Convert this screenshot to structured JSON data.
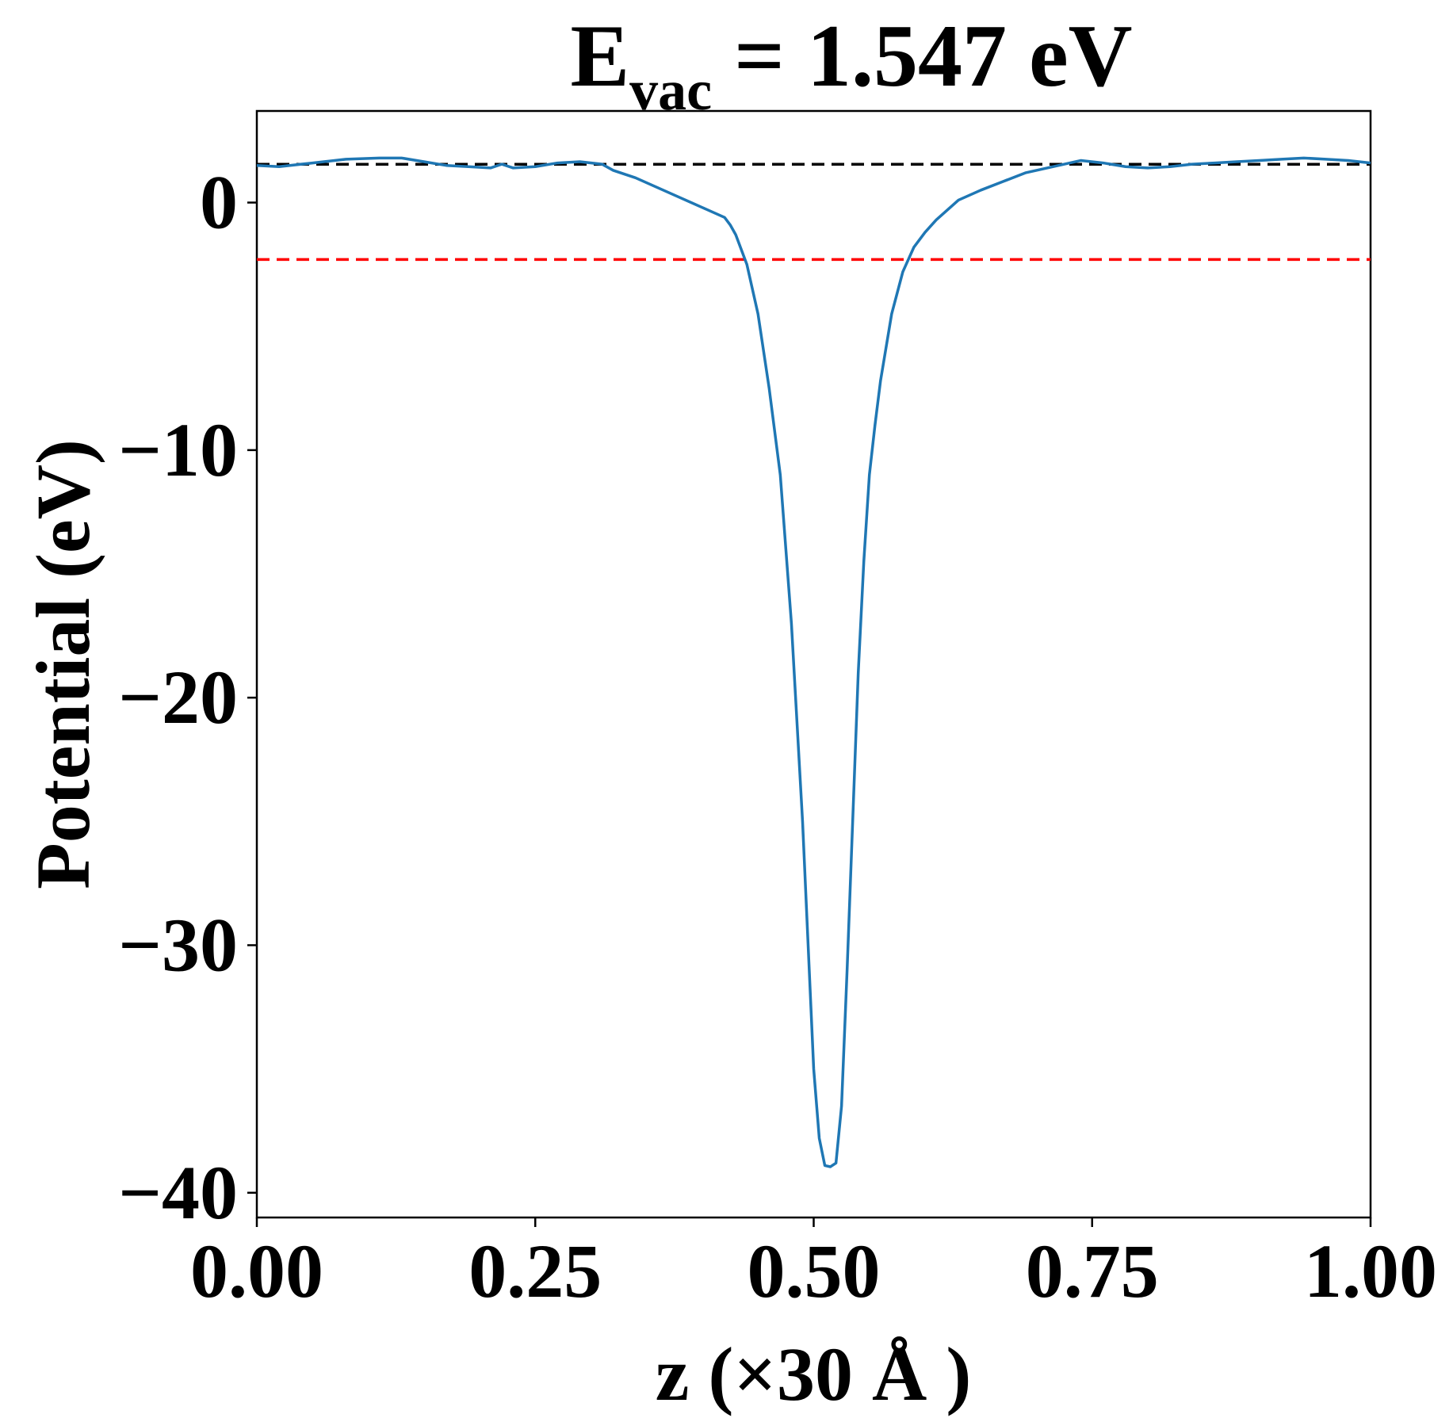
{
  "chart_data": {
    "type": "line",
    "title": {
      "base": "E",
      "subscript": "vac",
      "rest": " = 1.547 eV"
    },
    "xlabel": "z (×30 Å )",
    "ylabel": "Potential (eV)",
    "xlim": [
      0.0,
      1.0
    ],
    "ylim": [
      -41,
      3.7
    ],
    "x_ticks": [
      0.0,
      0.25,
      0.5,
      0.75,
      1.0
    ],
    "x_tick_labels": [
      "0.00",
      "0.25",
      "0.50",
      "0.75",
      "1.00"
    ],
    "y_ticks": [
      0,
      -10,
      -20,
      -30,
      -40
    ],
    "y_tick_labels": [
      "0",
      "−10",
      "−20",
      "−30",
      "−40"
    ],
    "grid": false,
    "colors": {
      "series": "#1f77b4",
      "vacuum_line": "#000000",
      "reference_line": "#ff0000"
    },
    "reference_lines": [
      {
        "y": 1.547,
        "style": "dashed",
        "color": "#000000"
      },
      {
        "y": -2.3,
        "style": "dashed",
        "color": "#ff0000"
      }
    ],
    "series": [
      {
        "x": [
          0.0,
          0.02,
          0.05,
          0.08,
          0.11,
          0.13,
          0.15,
          0.17,
          0.19,
          0.21,
          0.22,
          0.23,
          0.25,
          0.27,
          0.29,
          0.31,
          0.32,
          0.34,
          0.36,
          0.38,
          0.4,
          0.42,
          0.425,
          0.43,
          0.44,
          0.45,
          0.46,
          0.47,
          0.48,
          0.49,
          0.495,
          0.5,
          0.505,
          0.51,
          0.515,
          0.52,
          0.525,
          0.53,
          0.535,
          0.54,
          0.545,
          0.55,
          0.555,
          0.56,
          0.57,
          0.58,
          0.59,
          0.6,
          0.61,
          0.62,
          0.63,
          0.65,
          0.67,
          0.69,
          0.71,
          0.73,
          0.74,
          0.76,
          0.78,
          0.8,
          0.82,
          0.84,
          0.86,
          0.88,
          0.9,
          0.92,
          0.94,
          0.96,
          0.98,
          1.0
        ],
        "y": [
          1.5,
          1.45,
          1.6,
          1.75,
          1.8,
          1.8,
          1.65,
          1.5,
          1.45,
          1.4,
          1.55,
          1.4,
          1.45,
          1.6,
          1.65,
          1.55,
          1.3,
          1.0,
          0.6,
          0.2,
          -0.2,
          -0.6,
          -0.9,
          -1.3,
          -2.5,
          -4.5,
          -7.5,
          -11.0,
          -17.0,
          -25.0,
          -30.0,
          -35.0,
          -37.8,
          -38.9,
          -38.95,
          -38.8,
          -36.5,
          -31.0,
          -25.0,
          -19.0,
          -14.5,
          -11.0,
          -9.0,
          -7.2,
          -4.5,
          -2.8,
          -1.8,
          -1.2,
          -0.7,
          -0.3,
          0.1,
          0.5,
          0.85,
          1.2,
          1.4,
          1.6,
          1.7,
          1.6,
          1.45,
          1.4,
          1.45,
          1.55,
          1.6,
          1.65,
          1.7,
          1.75,
          1.8,
          1.75,
          1.7,
          1.6
        ]
      }
    ]
  }
}
